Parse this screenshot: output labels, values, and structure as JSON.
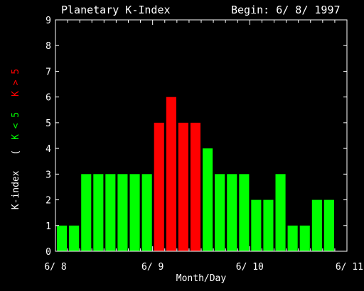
{
  "chart_data": {
    "type": "bar",
    "title": "Planetary K-Index",
    "begin_label": "Begin: 6/ 8/ 1997",
    "xlabel": "Month/Day",
    "ylabel": "K-index",
    "legend": {
      "open": "(",
      "low": "K < 5",
      "high": "K > 5"
    },
    "ylim": [
      0,
      9
    ],
    "yticks": [
      "0",
      "1",
      "2",
      "3",
      "4",
      "5",
      "6",
      "7",
      "8",
      "9"
    ],
    "xlim": [
      0,
      24
    ],
    "xticks": [
      {
        "x": 0,
        "label": "6/ 8"
      },
      {
        "x": 8,
        "label": "6/ 9"
      },
      {
        "x": 16,
        "label": "6/ 10"
      },
      {
        "x": 24,
        "label": "6/ 11"
      }
    ],
    "values": [
      1,
      1,
      3,
      3,
      3,
      3,
      3,
      3,
      5,
      6,
      5,
      5,
      4,
      3,
      3,
      3,
      2,
      2,
      3,
      1,
      1,
      2,
      2
    ],
    "colors": {
      "low": "#00ff00",
      "high": "#ff0000",
      "axes": "#ffffff",
      "background": "#000000"
    },
    "threshold": 5,
    "grid": false
  }
}
